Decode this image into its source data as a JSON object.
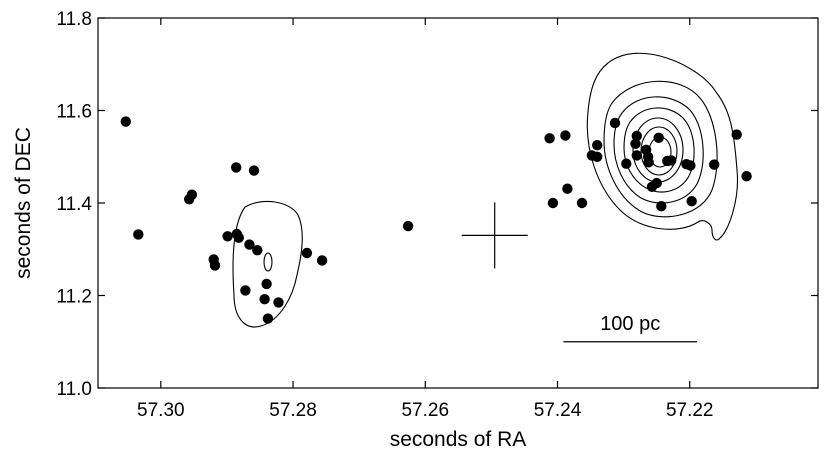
{
  "chart_data": {
    "type": "scatter",
    "xlabel": "seconds of RA",
    "ylabel": "seconds of DEC",
    "x_reversed": true,
    "xlim": [
      57.3095,
      57.2006
    ],
    "ylim": [
      11.0,
      11.8
    ],
    "xticks": [
      57.3,
      57.28,
      57.26,
      57.24,
      57.22
    ],
    "xtick_labels": [
      "57.30",
      "57.28",
      "57.26",
      "57.24",
      "57.22"
    ],
    "yticks": [
      11.0,
      11.2,
      11.4,
      11.6,
      11.8
    ],
    "ytick_labels": [
      "11.0",
      "11.2",
      "11.4",
      "11.6",
      "11.8"
    ],
    "grid": false,
    "points": [
      [
        57.3053,
        11.576
      ],
      [
        57.3034,
        11.332
      ],
      [
        57.2957,
        11.408
      ],
      [
        57.2953,
        11.418
      ],
      [
        57.2886,
        11.477
      ],
      [
        57.2859,
        11.47
      ],
      [
        57.292,
        11.278
      ],
      [
        57.2918,
        11.265
      ],
      [
        57.2899,
        11.328
      ],
      [
        57.2885,
        11.333
      ],
      [
        57.2882,
        11.325
      ],
      [
        57.2866,
        11.31
      ],
      [
        57.2854,
        11.298
      ],
      [
        57.2872,
        11.211
      ],
      [
        57.2843,
        11.192
      ],
      [
        57.284,
        11.225
      ],
      [
        57.2838,
        11.15
      ],
      [
        57.2822,
        11.185
      ],
      [
        57.2779,
        11.292
      ],
      [
        57.2756,
        11.276
      ],
      [
        57.2626,
        11.35
      ],
      [
        57.2412,
        11.54
      ],
      [
        57.2407,
        11.4
      ],
      [
        57.2388,
        11.546
      ],
      [
        57.2385,
        11.431
      ],
      [
        57.2363,
        11.4
      ],
      [
        57.2348,
        11.503
      ],
      [
        57.234,
        11.525
      ],
      [
        57.234,
        11.5
      ],
      [
        57.2313,
        11.573
      ],
      [
        57.2296,
        11.485
      ],
      [
        57.2282,
        11.528
      ],
      [
        57.228,
        11.545
      ],
      [
        57.228,
        11.503
      ],
      [
        57.2266,
        11.515
      ],
      [
        57.2263,
        11.5
      ],
      [
        57.2257,
        11.435
      ],
      [
        57.2262,
        11.488
      ],
      [
        57.225,
        11.443
      ],
      [
        57.2247,
        11.541
      ],
      [
        57.2243,
        11.393
      ],
      [
        57.2234,
        11.491
      ],
      [
        57.2228,
        11.492
      ],
      [
        57.2205,
        11.484
      ],
      [
        57.2199,
        11.481
      ],
      [
        57.2197,
        11.404
      ],
      [
        57.2163,
        11.483
      ],
      [
        57.2129,
        11.548
      ],
      [
        57.2114,
        11.458
      ]
    ],
    "annotations": {
      "scale_bar": {
        "label": "100 pc",
        "x_from": 57.2391,
        "x_to": 57.2189,
        "y": 11.1
      },
      "cross_marker": {
        "x": 57.2495,
        "y": 11.33
      }
    }
  }
}
